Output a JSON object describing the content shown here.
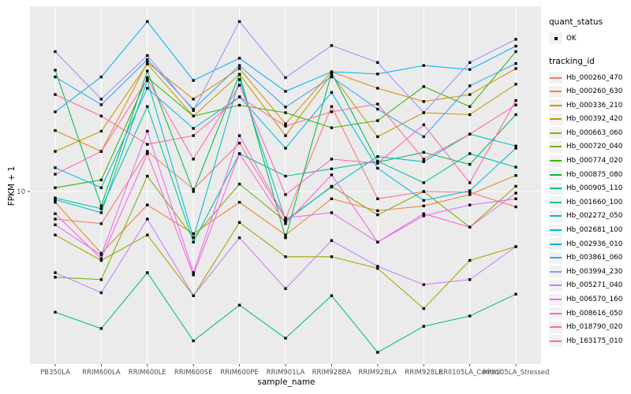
{
  "chart_data": {
    "type": "line",
    "xlabel": "sample_name",
    "ylabel": "FPKM + 1",
    "y_scale": "log10",
    "y_ticks": [
      {
        "label": "10",
        "value": 10
      }
    ],
    "y_domain": {
      "min": 1.07,
      "max": 109
    },
    "grid": "major-white-on-gray",
    "legend_position": "right",
    "marker": "black-square",
    "categories": [
      "PB350LA",
      "RRIM600LA",
      "RRIM600LE",
      "RRIM600SE",
      "RRIM600PE",
      "RRIM901LA",
      "RRIM928BA",
      "RRIM928LA",
      "RRIM928LE",
      "RRII105LA_Control",
      "RRII105LA_Stressed"
    ],
    "series": [
      {
        "name": "Hb_000260_470",
        "color": "#F8766D",
        "values": [
          7.0,
          6.6,
          16.8,
          10.3,
          18.7,
          7.0,
          30,
          9.1,
          10.0,
          9.9,
          8.2
        ]
      },
      {
        "name": "Hb_000260_630",
        "color": "#EA8331",
        "values": [
          8.7,
          4.5,
          8.4,
          5.8,
          8.7,
          5.7,
          9.1,
          7.8,
          8.3,
          9.6,
          12.3
        ]
      },
      {
        "name": "Hb_000336_210",
        "color": "#D89000",
        "values": [
          22,
          16.8,
          53,
          33,
          49,
          24,
          47,
          38,
          32,
          35,
          49
        ]
      },
      {
        "name": "Hb_000392_420",
        "color": "#C09B00",
        "values": [
          16.8,
          21.8,
          52,
          26.5,
          45.5,
          20.6,
          45.5,
          20.3,
          27.7,
          27,
          40
        ]
      },
      {
        "name": "Hb_000663_060",
        "color": "#A3A500",
        "values": [
          5.7,
          4.1,
          5.7,
          2.6,
          6.7,
          4.3,
          4.3,
          3.7,
          2.2,
          4.1,
          4.9
        ]
      },
      {
        "name": "Hb_000720_040",
        "color": "#7CAE00",
        "values": [
          3.3,
          3.2,
          12.2,
          5.5,
          11,
          6.8,
          10.7,
          7.4,
          10,
          6.3,
          10.7
        ]
      },
      {
        "name": "Hb_000774_020",
        "color": "#39B600",
        "values": [
          10.5,
          11.6,
          43.6,
          26.5,
          30.5,
          27.7,
          22.8,
          25,
          38.8,
          30,
          61
        ]
      },
      {
        "name": "Hb_000875_080",
        "color": "#00BB4E",
        "values": [
          48,
          8.3,
          47.5,
          10,
          45.5,
          5.5,
          46.3,
          14.6,
          16.6,
          14.2,
          27
        ]
      },
      {
        "name": "Hb_000905_110",
        "color": "#00BF7D",
        "values": [
          2.1,
          1.7,
          3.5,
          1.45,
          2.3,
          1.5,
          2.6,
          1.25,
          1.75,
          2.0,
          2.65
        ]
      },
      {
        "name": "Hb_001660_100",
        "color": "#00C1A3",
        "values": [
          9.2,
          8.0,
          30,
          5.2,
          16.3,
          12.2,
          13.4,
          14.8,
          11.2,
          16.3,
          13.7
        ]
      },
      {
        "name": "Hb_002272_050",
        "color": "#00BFC4",
        "values": [
          9.0,
          7.6,
          42,
          5.5,
          42.5,
          6.9,
          10.6,
          15.7,
          14.7,
          21,
          18
        ]
      },
      {
        "name": "Hb_002681_100",
        "color": "#00BAE0",
        "values": [
          13.6,
          10.5,
          38,
          22.6,
          34,
          17.5,
          36,
          13.5,
          8.9,
          10.1,
          17.5
        ]
      },
      {
        "name": "Hb_002936_010",
        "color": "#00B0F6",
        "values": [
          28,
          44,
          90,
          42,
          56,
          36.5,
          47,
          45.7,
          51,
          48.4,
          65.5
        ]
      },
      {
        "name": "Hb_003861_060",
        "color": "#35A2FF",
        "values": [
          44,
          30.7,
          55,
          29,
          51,
          29.8,
          44,
          29,
          20.3,
          39.2,
          52.3
        ]
      },
      {
        "name": "Hb_003994_230",
        "color": "#9590FF",
        "values": [
          61,
          33,
          58,
          28.5,
          90,
          43.6,
          66,
          53,
          27.7,
          53,
          71.5
        ]
      },
      {
        "name": "Hb_005271_040",
        "color": "#C77CFF",
        "values": [
          3.5,
          2.7,
          7.0,
          2.6,
          5.5,
          2.85,
          5.3,
          3.8,
          3.0,
          3.2,
          4.9
        ]
      },
      {
        "name": "Hb_006570_160",
        "color": "#E76BF3",
        "values": [
          6.5,
          4.4,
          21.8,
          3.5,
          20.6,
          7.1,
          7.6,
          5.2,
          7.3,
          8.4,
          9.1
        ]
      },
      {
        "name": "Hb_008616_050",
        "color": "#FA62DB",
        "values": [
          7.5,
          4.2,
          16.3,
          3.4,
          16.3,
          6.6,
          12.4,
          5.2,
          7.5,
          6.3,
          9.8
        ]
      },
      {
        "name": "Hb_018790_020",
        "color": "#FF62BC",
        "values": [
          12.5,
          16.8,
          42.9,
          15.2,
          39.5,
          9.6,
          15.2,
          14.4,
          23.7,
          11.2,
          32.4
        ]
      },
      {
        "name": "Hb_163175_010",
        "color": "#FF6A98",
        "values": [
          35,
          26.5,
          18.4,
          20.6,
          34,
          23.3,
          28,
          31,
          15.2,
          21,
          30.6
        ]
      }
    ],
    "legend": {
      "quant_status_title": "quant_status",
      "quant_status_items": [
        {
          "label": "OK",
          "marker": "black-point"
        }
      ],
      "tracking_id_title": "tracking_id"
    },
    "colors": {
      "panel_bg": "#EBEBEB",
      "grid": "#FFFFFF",
      "marker": "#000000",
      "axis_text": "#4D4D4D",
      "tick_mark": "#333333",
      "legend_key_bg": "#F2F2F2"
    }
  }
}
